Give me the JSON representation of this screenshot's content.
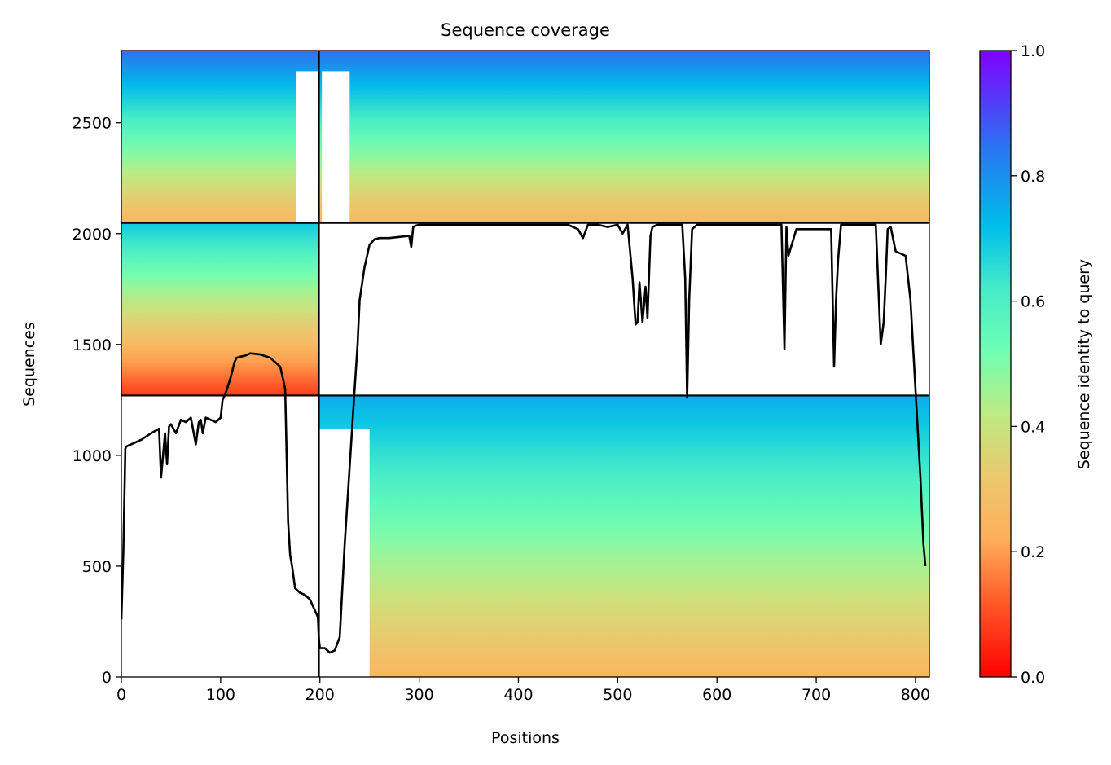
{
  "chart_data": {
    "type": "heatmap",
    "title": "Sequence coverage",
    "xlabel": "Positions",
    "ylabel": "Sequences",
    "xlim": [
      0,
      814
    ],
    "ylim": [
      0,
      2826
    ],
    "xticks": [
      "0",
      "100",
      "200",
      "300",
      "400",
      "500",
      "600",
      "700",
      "800"
    ],
    "yticks": [
      "0",
      "500",
      "1000",
      "1500",
      "2000",
      "2500"
    ],
    "colorbar": {
      "label": "Sequence identity to query",
      "colormap": "rainbow_r",
      "range": [
        0,
        1
      ],
      "ticks": [
        "0.0",
        "0.2",
        "0.4",
        "0.6",
        "0.8",
        "1.0"
      ]
    },
    "chain_boundaries": {
      "vertical_positions": [
        199
      ],
      "horizontal_sequences": [
        1270,
        2048
      ]
    },
    "msa_blocks": [
      {
        "x0": 0,
        "x1": 199,
        "y0": 2048,
        "y1": 2826,
        "identity_top": 0.85,
        "identity_bottom": 0.25,
        "empty_x": [
          176,
          199
        ]
      },
      {
        "x0": 199,
        "x1": 814,
        "y0": 2048,
        "y1": 2826,
        "identity_top": 0.85,
        "identity_bottom": 0.25,
        "empty_x": [
          202,
          230
        ]
      },
      {
        "x0": 0,
        "x1": 199,
        "y0": 1270,
        "y1": 2048,
        "identity_top": 0.7,
        "identity_bottom": 0.08
      },
      {
        "x0": 199,
        "x1": 814,
        "y0": 0,
        "y1": 1270,
        "identity_top": 0.75,
        "identity_bottom": 0.25,
        "empty_x": [
          199,
          250
        ]
      }
    ],
    "coverage_line": {
      "color": "#000000",
      "x": [
        0,
        2,
        4,
        5,
        10,
        20,
        30,
        34,
        38,
        40,
        42,
        44,
        46,
        48,
        50,
        55,
        60,
        65,
        70,
        75,
        78,
        80,
        82,
        85,
        90,
        95,
        100,
        102,
        105,
        110,
        114,
        116,
        120,
        125,
        130,
        140,
        150,
        160,
        165,
        168,
        170,
        172,
        175,
        180,
        185,
        190,
        195,
        198,
        199,
        200,
        205,
        210,
        215,
        220,
        225,
        230,
        235,
        238,
        240,
        245,
        250,
        255,
        260,
        270,
        280,
        290,
        292,
        294,
        296,
        300,
        350,
        400,
        450,
        460,
        465,
        470,
        480,
        490,
        500,
        505,
        510,
        515,
        518,
        520,
        522,
        525,
        528,
        530,
        533,
        535,
        540,
        550,
        560,
        565,
        568,
        570,
        572,
        575,
        580,
        600,
        650,
        660,
        665,
        668,
        670,
        672,
        680,
        690,
        700,
        710,
        715,
        718,
        720,
        722,
        725,
        730,
        740,
        760,
        765,
        768,
        770,
        772,
        775,
        780,
        790,
        795,
        800,
        805,
        808,
        810,
        812,
        814
      ],
      "y": [
        260,
        560,
        1030,
        1040,
        1050,
        1070,
        1100,
        1110,
        1120,
        900,
        1000,
        1100,
        960,
        1130,
        1140,
        1100,
        1160,
        1150,
        1170,
        1050,
        1150,
        1160,
        1100,
        1170,
        1160,
        1150,
        1170,
        1250,
        1280,
        1350,
        1420,
        1440,
        1445,
        1450,
        1460,
        1455,
        1440,
        1400,
        1300,
        700,
        550,
        500,
        400,
        380,
        370,
        350,
        300,
        270,
        170,
        130,
        130,
        110,
        120,
        180,
        600,
        950,
        1300,
        1500,
        1700,
        1850,
        1950,
        1975,
        1980,
        1980,
        1985,
        1990,
        1940,
        2030,
        2035,
        2040,
        2040,
        2040,
        2040,
        2020,
        1980,
        2040,
        2040,
        2030,
        2040,
        2000,
        2040,
        1800,
        1590,
        1600,
        1780,
        1600,
        1760,
        1620,
        1990,
        2030,
        2040,
        2040,
        2040,
        2040,
        1800,
        1260,
        1700,
        2020,
        2040,
        2040,
        2040,
        2040,
        2040,
        1480,
        2030,
        1900,
        2020,
        2020,
        2020,
        2020,
        2020,
        1400,
        1700,
        1880,
        2040,
        2040,
        2040,
        2040,
        1500,
        1600,
        1800,
        2020,
        2030,
        1920,
        1900,
        1700,
        1300,
        900,
        600,
        500
      ]
    }
  }
}
